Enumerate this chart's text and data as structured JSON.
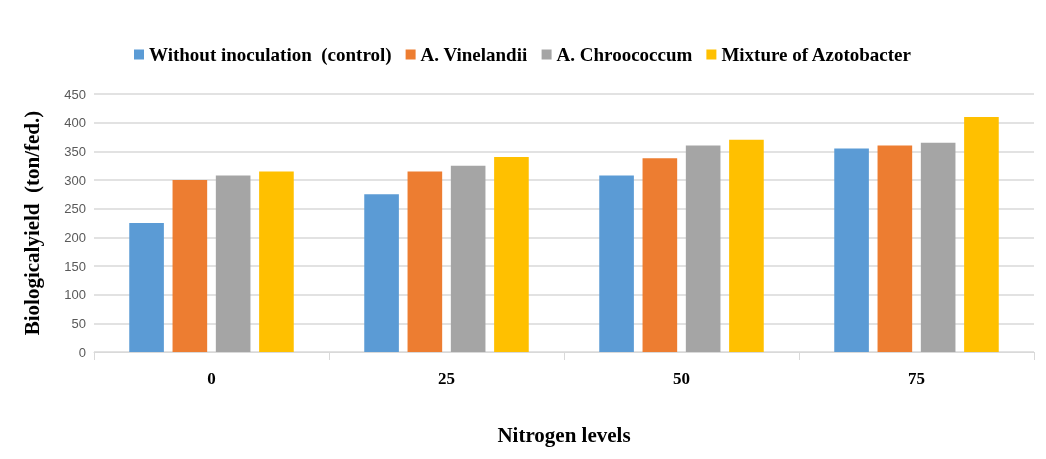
{
  "chart_data": {
    "type": "bar",
    "xlabel": "Nitrogen levels",
    "ylabel": "Biologicalyield  (ton/fed.)",
    "categories": [
      "0",
      "25",
      "50",
      "75"
    ],
    "series": [
      {
        "name": "Without inoculation  (control)",
        "color": "#5b9bd5",
        "values": [
          225,
          275,
          308,
          355
        ]
      },
      {
        "name": "A. Vinelandii",
        "color": "#ed7d31",
        "values": [
          300,
          315,
          338,
          360
        ]
      },
      {
        "name": "A. Chroococcum",
        "color": "#a5a5a5",
        "values": [
          308,
          325,
          360,
          365
        ]
      },
      {
        "name": "Mixture of Azotobacter",
        "color": "#ffc000",
        "values": [
          315,
          340,
          370,
          410
        ]
      }
    ],
    "ylim": [
      0,
      450
    ],
    "yticks": [
      0,
      50,
      100,
      150,
      200,
      250,
      300,
      350,
      400,
      450
    ],
    "grid": "y",
    "legend": "top"
  }
}
